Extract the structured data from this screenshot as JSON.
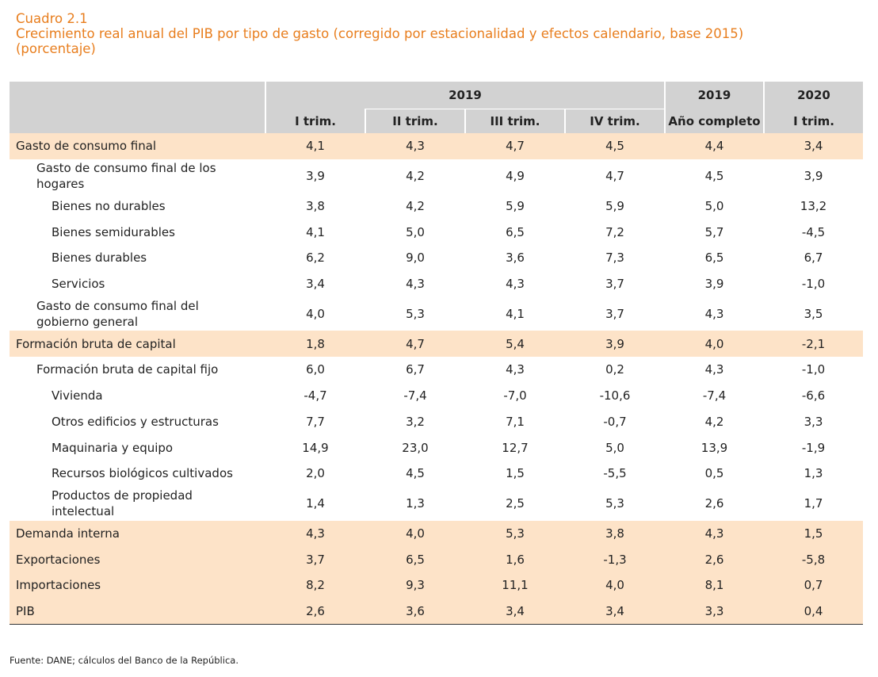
{
  "header": {
    "line1": "Cuadro 2.1",
    "line2": "Crecimiento real anual del PIB por tipo de gasto (corregido por estacionalidad y efectos calendario, base 2015)",
    "line3": "(porcentaje)"
  },
  "table": {
    "group_2019": "2019",
    "col_2019b": "2019",
    "col_2020": "2020",
    "sub": [
      "I trim.",
      "II trim.",
      "III trim.",
      "IV trim.",
      "Año completo",
      "I trim."
    ],
    "rows": [
      {
        "label": "Gasto de consumo final",
        "values": [
          "4,1",
          "4,3",
          "4,7",
          "4,5",
          "4,4",
          "3,4"
        ]
      },
      {
        "label": "Gasto de consumo final de los hogares",
        "values": [
          "3,9",
          "4,2",
          "4,9",
          "4,7",
          "4,5",
          "3,9"
        ]
      },
      {
        "label": "Bienes no durables",
        "values": [
          "3,8",
          "4,2",
          "5,9",
          "5,9",
          "5,0",
          "13,2"
        ]
      },
      {
        "label": "Bienes semidurables",
        "values": [
          "4,1",
          "5,0",
          "6,5",
          "7,2",
          "5,7",
          "-4,5"
        ]
      },
      {
        "label": "Bienes durables",
        "values": [
          "6,2",
          "9,0",
          "3,6",
          "7,3",
          "6,5",
          "6,7"
        ]
      },
      {
        "label": "Servicios",
        "values": [
          "3,4",
          "4,3",
          "4,3",
          "3,7",
          "3,9",
          "-1,0"
        ]
      },
      {
        "label": "Gasto de consumo final del gobierno general",
        "values": [
          "4,0",
          "5,3",
          "4,1",
          "3,7",
          "4,3",
          "3,5"
        ]
      },
      {
        "label": "Formación bruta de capital",
        "values": [
          "1,8",
          "4,7",
          "5,4",
          "3,9",
          "4,0",
          "-2,1"
        ]
      },
      {
        "label": "Formación bruta de capital fijo",
        "values": [
          "6,0",
          "6,7",
          "4,3",
          "0,2",
          "4,3",
          "-1,0"
        ]
      },
      {
        "label": "Vivienda",
        "values": [
          "-4,7",
          "-7,4",
          "-7,0",
          "-10,6",
          "-7,4",
          "-6,6"
        ]
      },
      {
        "label": "Otros edificios y estructuras",
        "values": [
          "7,7",
          "3,2",
          "7,1",
          "-0,7",
          "4,2",
          "3,3"
        ]
      },
      {
        "label": "Maquinaria y equipo",
        "values": [
          "14,9",
          "23,0",
          "12,7",
          "5,0",
          "13,9",
          "-1,9"
        ]
      },
      {
        "label": "Recursos biológicos cultivados",
        "values": [
          "2,0",
          "4,5",
          "1,5",
          "-5,5",
          "0,5",
          "1,3"
        ]
      },
      {
        "label": "Productos de propiedad intelectual",
        "values": [
          "1,4",
          "1,3",
          "2,5",
          "5,3",
          "2,6",
          "1,7"
        ]
      },
      {
        "label": "Demanda interna",
        "values": [
          "4,3",
          "4,0",
          "5,3",
          "3,8",
          "4,3",
          "1,5"
        ]
      },
      {
        "label": "Exportaciones",
        "values": [
          "3,7",
          "6,5",
          "1,6",
          "-1,3",
          "2,6",
          "-5,8"
        ]
      },
      {
        "label": "Importaciones",
        "values": [
          "8,2",
          "9,3",
          "11,1",
          "4,0",
          "8,1",
          "0,7"
        ]
      },
      {
        "label": "PIB",
        "values": [
          "2,6",
          "3,6",
          "3,4",
          "3,4",
          "3,3",
          "0,4"
        ]
      }
    ]
  },
  "footer": {
    "source": "Fuente: DANE; cálculos del Banco de la República."
  },
  "colors": {
    "title": "#e87e1e",
    "header_bg": "#d2d2d2",
    "highlight_bg": "#fde3c8"
  }
}
